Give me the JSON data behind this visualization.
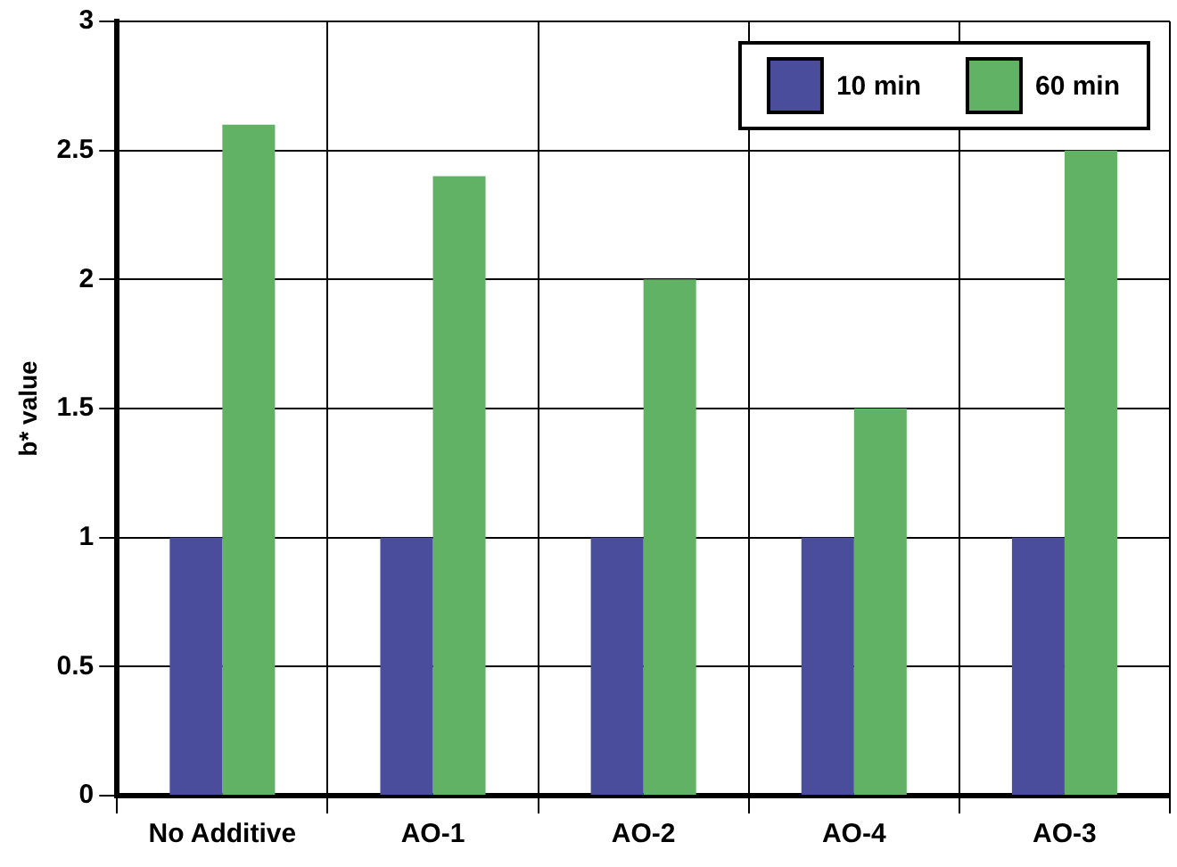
{
  "chart_data": {
    "type": "bar",
    "ylabel": "b* value",
    "categories": [
      "No Additive",
      "AO-1",
      "AO-2",
      "AO-4",
      "AO-3"
    ],
    "series": [
      {
        "name": "10 min",
        "color": "#4a4d9c",
        "values": [
          1,
          1,
          1,
          1,
          1
        ]
      },
      {
        "name": "60 min",
        "color": "#62b266",
        "values": [
          2.6,
          2.4,
          2,
          1.5,
          2.5
        ]
      }
    ],
    "ylim": [
      0,
      3
    ],
    "yticks": [
      0,
      0.5,
      1,
      1.5,
      2,
      2.5,
      3
    ],
    "grid": true,
    "legend": "top right"
  }
}
